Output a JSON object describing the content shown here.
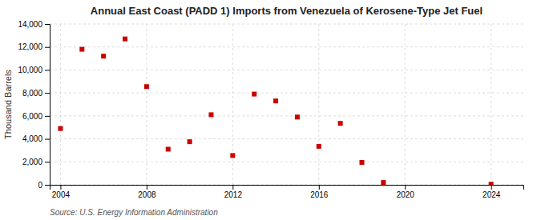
{
  "chart_data": {
    "type": "scatter",
    "title": "Annual East Coast (PADD 1) Imports from Venezuela of Kerosene-Type Jet Fuel",
    "ylabel": "Thousand Barrels",
    "source": "Source: U.S. Energy Information Administration",
    "x": [
      2004,
      2005,
      2006,
      2007,
      2008,
      2009,
      2010,
      2011,
      2012,
      2013,
      2014,
      2015,
      2016,
      2017,
      2018,
      2019,
      2024
    ],
    "values": [
      4900,
      11800,
      11200,
      12700,
      8550,
      3100,
      3750,
      6100,
      2550,
      7900,
      7300,
      5900,
      3350,
      5350,
      1950,
      200,
      50
    ],
    "color": "#cc0000",
    "marker": "square",
    "xlim": [
      2003.5,
      2025.5
    ],
    "xticks": [
      2004,
      2008,
      2012,
      2016,
      2020,
      2024
    ],
    "ylim": [
      0,
      14000
    ],
    "yticks": [
      0,
      {
        "value": 2000,
        "label": "2,000"
      },
      {
        "value": 4000,
        "label": "4,000"
      },
      {
        "value": 6000,
        "label": "6,000"
      },
      {
        "value": 8000,
        "label": "8,000"
      },
      {
        "value": 10000,
        "label": "10,000"
      },
      {
        "value": 12000,
        "label": "12,000"
      },
      {
        "value": 14000,
        "label": "14,000"
      }
    ],
    "grid": true
  }
}
